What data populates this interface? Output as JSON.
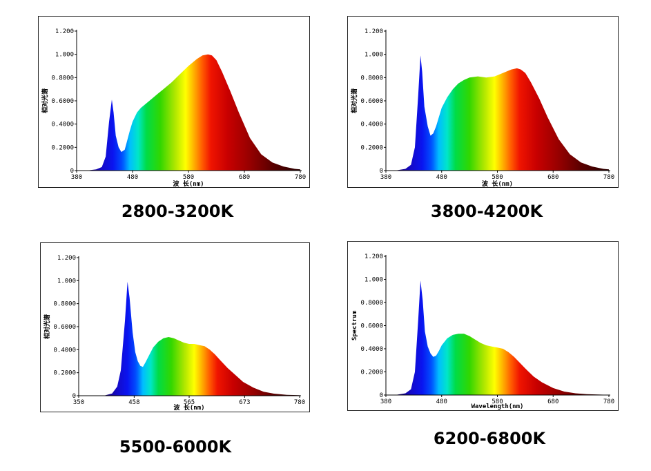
{
  "chart_data": [
    {
      "type": "area",
      "caption": "2800-3200K",
      "xlabel": "波 长(nm)",
      "ylabel": "相对光谱",
      "xlim": [
        380,
        780
      ],
      "ylim": [
        0,
        1.2
      ],
      "xticks": [
        380,
        480,
        580,
        680,
        780
      ],
      "xtick_labels": [
        "380",
        "480",
        "580",
        "680",
        "780"
      ],
      "ytick_labels": [
        "0",
        "0.2000",
        "0.4000",
        "0.6000",
        "0.8000",
        "1.000",
        "1.200"
      ],
      "yticks": [
        0,
        0.2,
        0.4,
        0.6,
        0.8,
        1.0,
        1.2
      ],
      "grid": false,
      "x": [
        380,
        400,
        415,
        425,
        432,
        438,
        443,
        446,
        450,
        455,
        460,
        466,
        470,
        475,
        480,
        488,
        495,
        505,
        515,
        525,
        535,
        550,
        565,
        580,
        595,
        605,
        615,
        622,
        630,
        640,
        655,
        670,
        690,
        710,
        730,
        750,
        770,
        780
      ],
      "y": [
        0,
        0.002,
        0.01,
        0.03,
        0.12,
        0.42,
        0.61,
        0.5,
        0.3,
        0.2,
        0.16,
        0.18,
        0.25,
        0.34,
        0.42,
        0.5,
        0.54,
        0.58,
        0.62,
        0.66,
        0.7,
        0.76,
        0.83,
        0.9,
        0.96,
        0.99,
        1.0,
        0.99,
        0.95,
        0.85,
        0.68,
        0.5,
        0.28,
        0.14,
        0.07,
        0.035,
        0.015,
        0.01
      ]
    },
    {
      "type": "area",
      "caption": "3800-4200K",
      "xlabel": "波 长(nm)",
      "ylabel": "相对光谱",
      "xlim": [
        380,
        780
      ],
      "ylim": [
        0,
        1.2
      ],
      "xticks": [
        380,
        480,
        580,
        680,
        780
      ],
      "xtick_labels": [
        "380",
        "480",
        "580",
        "680",
        "780"
      ],
      "ytick_labels": [
        "0",
        "0.2000",
        "0.4000",
        "0.6000",
        "0.8000",
        "1.000",
        "1.200"
      ],
      "yticks": [
        0,
        0.2,
        0.4,
        0.6,
        0.8,
        1.0,
        1.2
      ],
      "grid": false,
      "x": [
        380,
        400,
        415,
        425,
        432,
        438,
        442,
        445,
        449,
        455,
        460,
        465,
        470,
        475,
        480,
        490,
        500,
        510,
        520,
        530,
        545,
        560,
        575,
        590,
        605,
        615,
        622,
        630,
        640,
        655,
        670,
        690,
        710,
        730,
        750,
        770,
        780
      ],
      "y": [
        0,
        0.003,
        0.015,
        0.05,
        0.2,
        0.65,
        0.99,
        0.85,
        0.55,
        0.38,
        0.3,
        0.32,
        0.38,
        0.46,
        0.54,
        0.63,
        0.7,
        0.75,
        0.78,
        0.8,
        0.81,
        0.8,
        0.81,
        0.84,
        0.87,
        0.88,
        0.87,
        0.84,
        0.76,
        0.62,
        0.46,
        0.27,
        0.14,
        0.07,
        0.035,
        0.015,
        0.01
      ]
    },
    {
      "type": "area",
      "caption": "5500-6000K",
      "xlabel": "波 长(nm)",
      "ylabel": "相对光谱",
      "xlim": [
        350,
        780
      ],
      "ylim": [
        0,
        1.2
      ],
      "xticks": [
        350,
        458,
        565,
        673,
        780
      ],
      "xtick_labels": [
        "350",
        "458",
        "565",
        "673",
        "780"
      ],
      "ytick_labels": [
        "0",
        "0.2000",
        "0.4000",
        "0.6000",
        "0.8000",
        "1.000",
        "1.200"
      ],
      "yticks": [
        0,
        0.2,
        0.4,
        0.6,
        0.8,
        1.0,
        1.2
      ],
      "grid": false,
      "x": [
        350,
        380,
        400,
        415,
        425,
        432,
        440,
        445,
        449,
        455,
        460,
        465,
        470,
        475,
        480,
        488,
        495,
        505,
        515,
        525,
        535,
        545,
        555,
        565,
        575,
        585,
        595,
        605,
        615,
        625,
        640,
        655,
        670,
        690,
        710,
        730,
        755,
        780
      ],
      "y": [
        0,
        0,
        0.002,
        0.02,
        0.08,
        0.22,
        0.65,
        0.99,
        0.85,
        0.55,
        0.38,
        0.3,
        0.26,
        0.25,
        0.29,
        0.36,
        0.42,
        0.47,
        0.5,
        0.51,
        0.5,
        0.48,
        0.46,
        0.45,
        0.45,
        0.44,
        0.43,
        0.4,
        0.36,
        0.31,
        0.24,
        0.18,
        0.12,
        0.07,
        0.035,
        0.018,
        0.008,
        0.004
      ]
    },
    {
      "type": "area",
      "caption": "6200-6800K",
      "xlabel": "Wavelength(nm)",
      "ylabel": "Spectrum",
      "xlim": [
        380,
        780
      ],
      "ylim": [
        0,
        1.2
      ],
      "xticks": [
        380,
        480,
        580,
        680,
        780
      ],
      "xtick_labels": [
        "380",
        "480",
        "580",
        "680",
        "780"
      ],
      "ytick_labels": [
        "0",
        "0.2000",
        "0.4000",
        "0.6000",
        "0.8000",
        "1.000",
        "1.200"
      ],
      "yticks": [
        0,
        0.2,
        0.4,
        0.6,
        0.8,
        1.0,
        1.2
      ],
      "grid": false,
      "x": [
        380,
        400,
        415,
        425,
        432,
        438,
        442,
        446,
        450,
        455,
        460,
        465,
        470,
        475,
        480,
        490,
        500,
        510,
        520,
        530,
        540,
        550,
        560,
        570,
        580,
        590,
        600,
        610,
        620,
        630,
        645,
        660,
        680,
        700,
        720,
        740,
        760,
        780
      ],
      "y": [
        0,
        0.003,
        0.015,
        0.05,
        0.2,
        0.65,
        0.99,
        0.82,
        0.55,
        0.42,
        0.36,
        0.33,
        0.34,
        0.38,
        0.43,
        0.49,
        0.52,
        0.53,
        0.53,
        0.51,
        0.48,
        0.45,
        0.43,
        0.42,
        0.41,
        0.4,
        0.37,
        0.33,
        0.28,
        0.23,
        0.16,
        0.11,
        0.06,
        0.03,
        0.015,
        0.008,
        0.004,
        0.002
      ]
    }
  ]
}
